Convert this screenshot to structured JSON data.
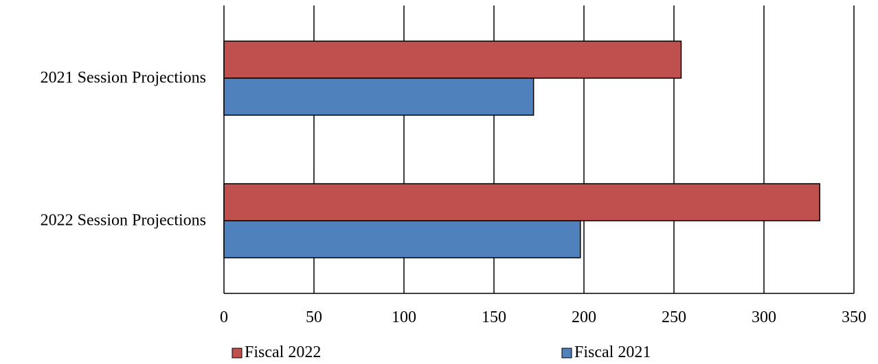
{
  "chart_data": {
    "type": "bar",
    "orientation": "horizontal",
    "categories": [
      "2021 Session Projections",
      "2022 Session Projections"
    ],
    "series": [
      {
        "name": "Fiscal 2022",
        "values": [
          254,
          331
        ],
        "color": "#c0504d"
      },
      {
        "name": "Fiscal 2021",
        "values": [
          172,
          198
        ],
        "color": "#4f81bd"
      }
    ],
    "xlim": [
      0,
      350
    ],
    "xticks": [
      0,
      50,
      100,
      150,
      200,
      250,
      300,
      350
    ],
    "grid": true,
    "legend_position": "bottom",
    "title": "",
    "xlabel": "",
    "ylabel": ""
  }
}
